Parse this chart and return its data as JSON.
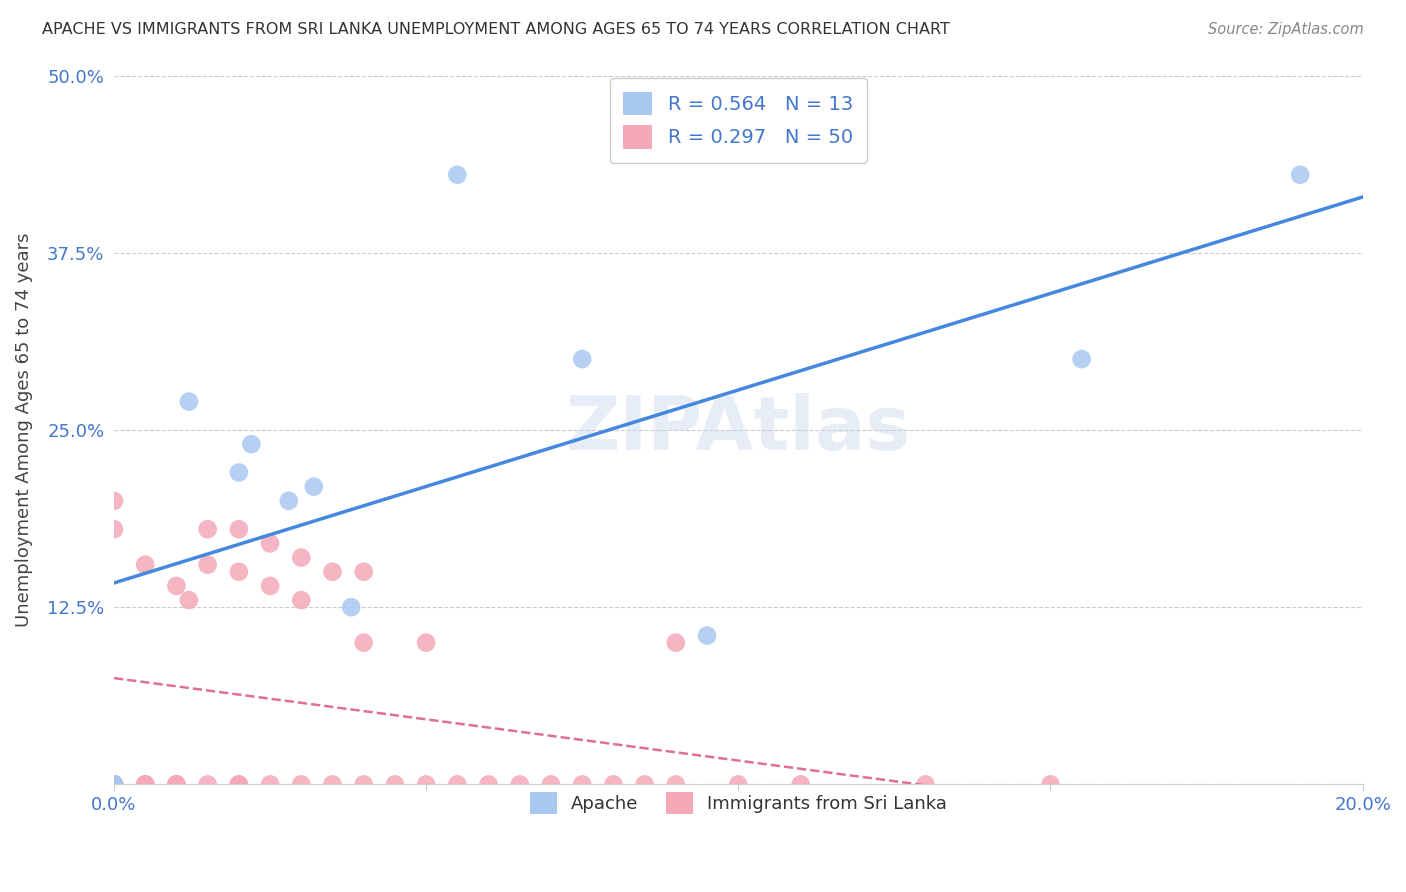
{
  "title": "APACHE VS IMMIGRANTS FROM SRI LANKA UNEMPLOYMENT AMONG AGES 65 TO 74 YEARS CORRELATION CHART",
  "source": "Source: ZipAtlas.com",
  "ylabel": "Unemployment Among Ages 65 to 74 years",
  "xlim": [
    0.0,
    0.2
  ],
  "ylim": [
    0.0,
    0.5
  ],
  "xticks": [
    0.0,
    0.05,
    0.1,
    0.15,
    0.2
  ],
  "xticklabels": [
    "0.0%",
    "",
    "",
    "",
    "20.0%"
  ],
  "yticks": [
    0.0,
    0.125,
    0.25,
    0.375,
    0.5
  ],
  "yticklabels": [
    "",
    "12.5%",
    "25.0%",
    "37.5%",
    "50.0%"
  ],
  "apache_R": 0.564,
  "apache_N": 13,
  "srilanka_R": 0.297,
  "srilanka_N": 50,
  "apache_color": "#a8c8f0",
  "srilanka_color": "#f4a8b8",
  "apache_line_color": "#4488dd",
  "srilanka_line_color": "#e07090",
  "background_color": "#ffffff",
  "grid_color": "#cccccc",
  "apache_points_x": [
    0.0,
    0.0,
    0.012,
    0.02,
    0.022,
    0.028,
    0.032,
    0.038,
    0.055,
    0.075,
    0.095,
    0.155,
    0.19
  ],
  "apache_points_y": [
    0.0,
    0.0,
    0.27,
    0.22,
    0.24,
    0.2,
    0.21,
    0.125,
    0.43,
    0.3,
    0.105,
    0.3,
    0.43
  ],
  "srilanka_points_x": [
    0.0,
    0.0,
    0.0,
    0.0,
    0.0,
    0.0,
    0.0,
    0.005,
    0.005,
    0.005,
    0.005,
    0.01,
    0.01,
    0.01,
    0.01,
    0.012,
    0.015,
    0.015,
    0.015,
    0.02,
    0.02,
    0.02,
    0.02,
    0.025,
    0.025,
    0.025,
    0.03,
    0.03,
    0.03,
    0.035,
    0.035,
    0.04,
    0.04,
    0.04,
    0.045,
    0.05,
    0.05,
    0.055,
    0.06,
    0.065,
    0.07,
    0.075,
    0.08,
    0.085,
    0.09,
    0.09,
    0.1,
    0.11,
    0.13,
    0.15
  ],
  "srilanka_points_y": [
    0.0,
    0.0,
    0.0,
    0.0,
    0.0,
    0.18,
    0.2,
    0.0,
    0.0,
    0.0,
    0.155,
    0.0,
    0.0,
    0.0,
    0.14,
    0.13,
    0.0,
    0.155,
    0.18,
    0.0,
    0.0,
    0.15,
    0.18,
    0.0,
    0.14,
    0.17,
    0.0,
    0.13,
    0.16,
    0.0,
    0.15,
    0.0,
    0.1,
    0.15,
    0.0,
    0.0,
    0.1,
    0.0,
    0.0,
    0.0,
    0.0,
    0.0,
    0.0,
    0.0,
    0.0,
    0.1,
    0.0,
    0.0,
    0.0,
    0.0
  ]
}
